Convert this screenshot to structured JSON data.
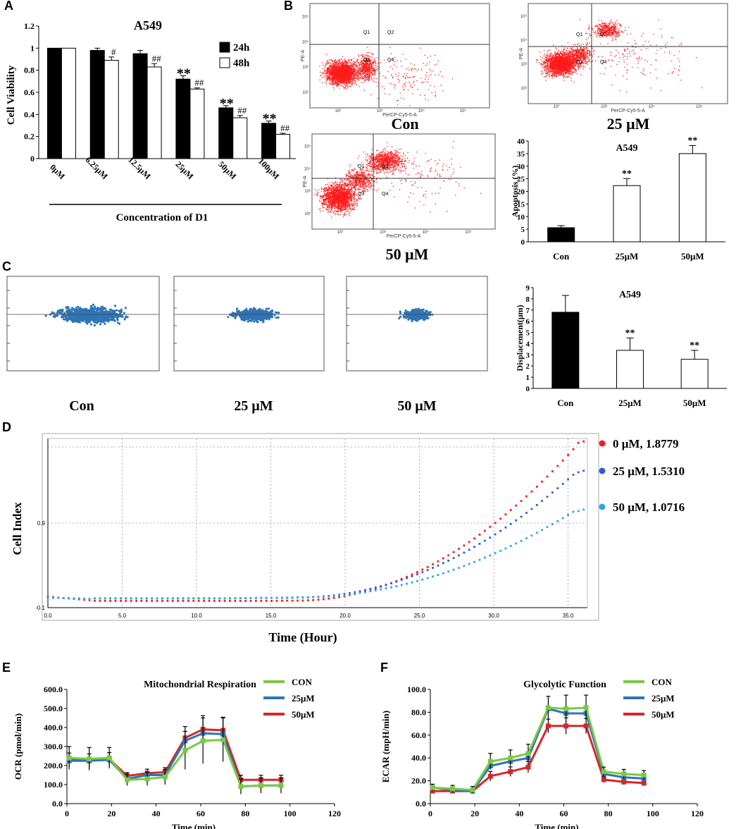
{
  "colors": {
    "red": "#ff1a1a",
    "blue": "#2f5bd8",
    "lightblue": "#2aa6e8",
    "scatter": "#2e75b6",
    "con_green": "#7ac943",
    "m25_blue": "#2e75b6",
    "m50_red": "#d62728"
  },
  "panel_labels": {
    "A": "A",
    "B": "B",
    "C": "C",
    "D": "D",
    "E": "E",
    "F": "F"
  },
  "chart_data": [
    {
      "id": "A",
      "type": "bar",
      "title": "A549",
      "ylabel": "Cell Viability",
      "xlabel": "Concentration of D1",
      "ylim": [
        0,
        1.2
      ],
      "yticks": [
        "0",
        "0.2",
        "0.4",
        "0.6",
        "0.8",
        "1",
        "1.2"
      ],
      "categories": [
        "0μM",
        "6.25μM",
        "12.5μM",
        "25μM",
        "50μM",
        "100μM"
      ],
      "series": [
        {
          "name": "24h",
          "values": [
            1.0,
            0.98,
            0.95,
            0.72,
            0.46,
            0.32
          ],
          "errors": [
            0,
            0.02,
            0.03,
            0.03,
            0.02,
            0.02
          ],
          "marks": [
            "",
            "",
            "",
            "**",
            "**",
            "**"
          ]
        },
        {
          "name": "48h",
          "values": [
            1.0,
            0.89,
            0.83,
            0.63,
            0.37,
            0.22
          ],
          "errors": [
            0,
            0.03,
            0.03,
            0.01,
            0.02,
            0.01
          ],
          "marks": [
            "",
            "#",
            "##",
            "##",
            "##",
            "##"
          ]
        }
      ]
    },
    {
      "id": "B-flow",
      "type": "scatter",
      "xaxis_label": "PerCP-Cy5-5-A",
      "yaxis_label": "PE-A",
      "quadrants": [
        "Q1",
        "Q2",
        "Q3",
        "Q4"
      ],
      "plots": [
        {
          "label": "Con",
          "tick_labels": [
            "10²",
            "10³",
            "10⁴",
            "10⁵"
          ]
        },
        {
          "label": "25 μM",
          "tick_labels": [
            "10²",
            "10³",
            "10⁴",
            "10⁵"
          ]
        },
        {
          "label": "50 μM",
          "tick_labels": [
            "10²",
            "10³",
            "10⁴",
            "10⁵"
          ]
        }
      ]
    },
    {
      "id": "B-bar",
      "type": "bar",
      "title": "A549",
      "ylabel": "Apoptosis (%)",
      "ylim": [
        0,
        40
      ],
      "yticks": [
        "0",
        "5",
        "10",
        "15",
        "20",
        "25",
        "30",
        "35",
        "40"
      ],
      "categories": [
        "Con",
        "25μM",
        "50μM"
      ],
      "values": [
        5.6,
        22.3,
        35.0
      ],
      "errors": [
        0.8,
        2.8,
        3.2
      ],
      "marks": [
        "",
        "**",
        "**"
      ]
    },
    {
      "id": "C-scatter",
      "type": "scatter",
      "plots": [
        {
          "label": "Con"
        },
        {
          "label": "25 μM"
        },
        {
          "label": "50 μM"
        }
      ]
    },
    {
      "id": "C-bar",
      "type": "bar",
      "title": "A549",
      "ylabel": "Displacement(μm)",
      "ylim": [
        0,
        9
      ],
      "yticks": [
        "0",
        "1",
        "2",
        "3",
        "4",
        "5",
        "6",
        "7",
        "8",
        "9"
      ],
      "categories": [
        "Con",
        "25μM",
        "50μM"
      ],
      "values": [
        6.8,
        3.4,
        2.6
      ],
      "errors": [
        1.5,
        1.1,
        0.8
      ],
      "marks": [
        "",
        "**",
        "**"
      ]
    },
    {
      "id": "D",
      "type": "line",
      "xlabel": "Time (Hour)",
      "ylabel": "Cell Index",
      "xlim": [
        0,
        36.3
      ],
      "ylim": [
        -0.1,
        1.9
      ],
      "xticks": [
        "0.0",
        "5.0",
        "10.0",
        "15.0",
        "20.0",
        "25.0",
        "30.0",
        "35.0"
      ],
      "ytick_labels": [
        "0.9",
        "-0.1"
      ],
      "series": [
        {
          "name": "0 μM, 1.8779",
          "final": 1.8779
        },
        {
          "name": "25 μM, 1.5310",
          "final": 1.531
        },
        {
          "name": "50 μM, 1.0716",
          "final": 1.0716
        }
      ]
    },
    {
      "id": "E",
      "type": "line",
      "title": "Mitochondrial Respiration",
      "xlabel": "Time (min)",
      "ylabel": "OCR (pmol/min)",
      "xlim": [
        0,
        120
      ],
      "ylim": [
        0,
        600
      ],
      "xticks": [
        "0",
        "20",
        "40",
        "60",
        "80",
        "100",
        "120"
      ],
      "yticks": [
        "0.0",
        "100.0",
        "200.0",
        "300.0",
        "400.0",
        "500.0",
        "600.0"
      ],
      "x": [
        1,
        10,
        19,
        27,
        36,
        44,
        53,
        61,
        70,
        78,
        87,
        96
      ],
      "series": [
        {
          "name": "CON",
          "values": [
            240,
            235,
            240,
            125,
            130,
            140,
            280,
            330,
            335,
            90,
            95,
            95
          ]
        },
        {
          "name": "25μM",
          "values": [
            225,
            225,
            230,
            130,
            150,
            150,
            330,
            370,
            365,
            90,
            95,
            95
          ]
        },
        {
          "name": "50μM",
          "values": [
            230,
            225,
            235,
            145,
            160,
            165,
            345,
            390,
            385,
            125,
            125,
            125
          ]
        }
      ]
    },
    {
      "id": "F",
      "type": "line",
      "title": "Glycolytic Function",
      "xlabel": "Time (min)",
      "ylabel": "ECAR (mpH/min)",
      "xlim": [
        0,
        120
      ],
      "ylim": [
        0,
        100
      ],
      "xticks": [
        "0",
        "20",
        "40",
        "60",
        "80",
        "100",
        "120"
      ],
      "yticks": [
        "0.0",
        "20.0",
        "40.0",
        "60.0",
        "80.0",
        "100.0"
      ],
      "x": [
        1,
        10,
        19,
        27,
        36,
        44,
        53,
        61,
        70,
        78,
        87,
        96
      ],
      "series": [
        {
          "name": "CON",
          "values": [
            14,
            13,
            12,
            37,
            40,
            44,
            84,
            83,
            84,
            28,
            26,
            25
          ]
        },
        {
          "name": "25μM",
          "values": [
            14,
            12,
            11,
            33,
            37,
            40,
            83,
            79,
            79,
            26,
            23,
            22
          ]
        },
        {
          "name": "50μM",
          "values": [
            11,
            11,
            11,
            24,
            28,
            32,
            68,
            68,
            68,
            21,
            19,
            18
          ]
        }
      ]
    }
  ]
}
